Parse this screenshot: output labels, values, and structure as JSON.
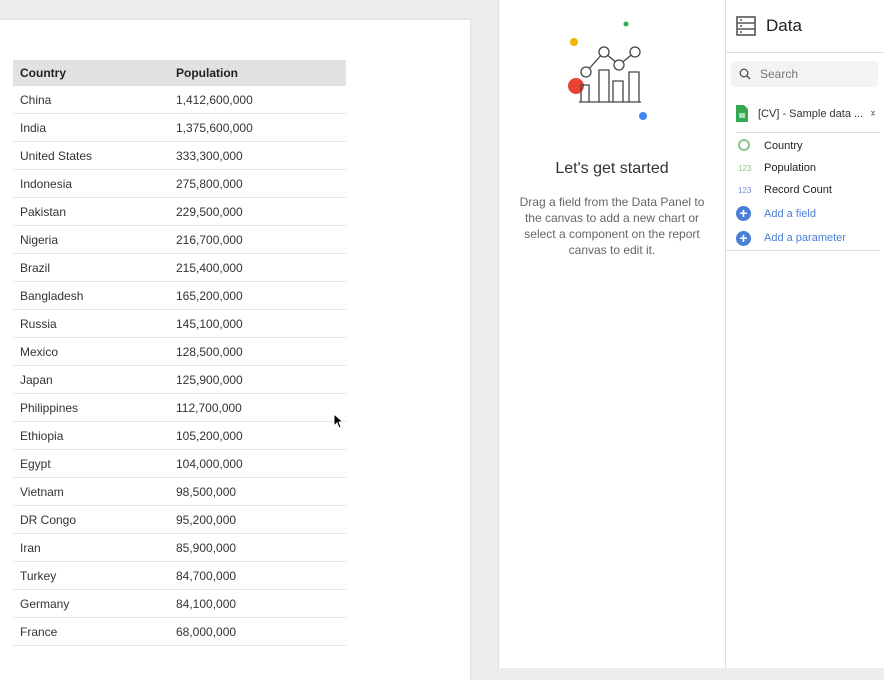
{
  "table": {
    "headers": [
      "Country",
      "Population"
    ],
    "rows": [
      [
        "China",
        "1,412,600,000"
      ],
      [
        "India",
        "1,375,600,000"
      ],
      [
        "United States",
        "333,300,000"
      ],
      [
        "Indonesia",
        "275,800,000"
      ],
      [
        "Pakistan",
        "229,500,000"
      ],
      [
        "Nigeria",
        "216,700,000"
      ],
      [
        "Brazil",
        "215,400,000"
      ],
      [
        "Bangladesh",
        "165,200,000"
      ],
      [
        "Russia",
        "145,100,000"
      ],
      [
        "Mexico",
        "128,500,000"
      ],
      [
        "Japan",
        "125,900,000"
      ],
      [
        "Philippines",
        "112,700,000"
      ],
      [
        "Ethiopia",
        "105,200,000"
      ],
      [
        "Egypt",
        "104,000,000"
      ],
      [
        "Vietnam",
        "98,500,000"
      ],
      [
        "DR Congo",
        "95,200,000"
      ],
      [
        "Iran",
        "85,900,000"
      ],
      [
        "Turkey",
        "84,700,000"
      ],
      [
        "Germany",
        "84,100,000"
      ],
      [
        "France",
        "68,000,000"
      ]
    ]
  },
  "start": {
    "title": "Let's get started",
    "description": "Drag a field from the Data Panel to the canvas to add a new chart or select a component on the report canvas to edit it."
  },
  "data_panel": {
    "title": "Data",
    "search_placeholder": "Search",
    "source": "[CV] - Sample data ...",
    "fields": [
      {
        "icon": "globe-icon",
        "type": "",
        "name": "Country",
        "color": "#8bc38b"
      },
      {
        "icon": "number-icon",
        "type": "123",
        "name": "Population",
        "color": "#8bc38b"
      },
      {
        "icon": "number-icon",
        "type": "123",
        "name": "Record Count",
        "color": "#6f8fd8"
      }
    ],
    "add_field": "Add a field",
    "add_parameter": "Add a parameter"
  },
  "colors": {
    "accent": "#4a7fd8"
  }
}
